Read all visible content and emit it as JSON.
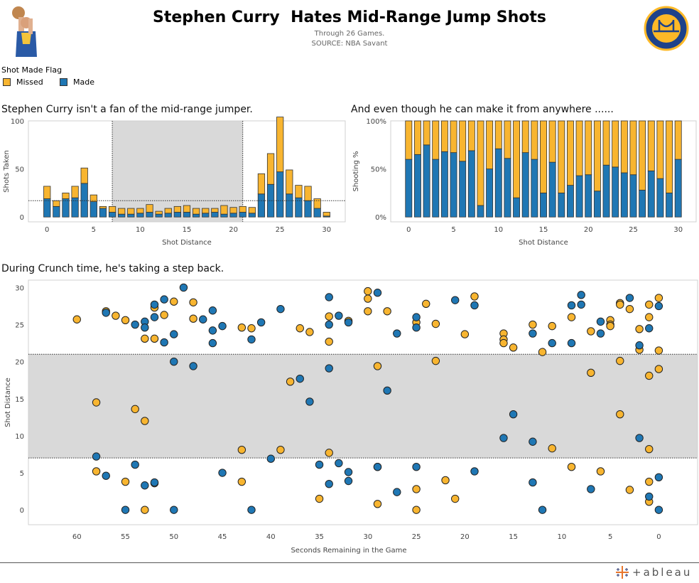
{
  "header": {
    "title": "Stephen Curry  Hates Mid-Range Jump Shots",
    "subtitle_line1": "Through 26 Games.",
    "subtitle_line2": "SOURCE: NBA Savant",
    "logo_text_top": "GOLDEN STATE",
    "logo_text_bottom": "WARRIORS"
  },
  "legend": {
    "title": "Shot Made Flag",
    "items": [
      {
        "label": "Missed",
        "color": "#f8b530"
      },
      {
        "label": "Made",
        "color": "#1f77b4"
      }
    ]
  },
  "colors": {
    "missed": "#f8b530",
    "made": "#1f77b4",
    "midrange_band": "#d9d9d9"
  },
  "footer": {
    "brand": "+ableau"
  },
  "chart_data": [
    {
      "type": "bar",
      "stacked": true,
      "title": "Stephen Curry isn't a fan of the mid-range jumper.",
      "xlabel": "Shot Distance",
      "ylabel": "Shots Taken",
      "xlim": [
        -2,
        32
      ],
      "ylim": [
        -5,
        100
      ],
      "x_ticks": [
        0,
        5,
        10,
        15,
        20,
        25,
        30
      ],
      "y_ticks": [
        0,
        50,
        100
      ],
      "highlight_band_x": [
        7,
        21
      ],
      "reference_line_y": 17,
      "categories": [
        0,
        1,
        2,
        3,
        4,
        5,
        6,
        7,
        8,
        9,
        10,
        11,
        12,
        13,
        14,
        15,
        16,
        17,
        18,
        19,
        20,
        21,
        22,
        23,
        24,
        25,
        26,
        27,
        28,
        29,
        30
      ],
      "series": [
        {
          "name": "Made",
          "values": [
            19,
            11,
            19,
            20,
            35,
            16,
            9,
            5,
            3,
            3,
            4,
            5,
            3,
            4,
            5,
            5,
            3,
            4,
            5,
            3,
            4,
            5,
            4,
            24,
            34,
            47,
            24,
            20,
            17,
            9,
            1
          ]
        },
        {
          "name": "Missed",
          "values": [
            13,
            6,
            6,
            12,
            16,
            7,
            2,
            6,
            6,
            6,
            5,
            8,
            3,
            5,
            6,
            7,
            6,
            5,
            4,
            9,
            6,
            6,
            6,
            21,
            32,
            57,
            25,
            13,
            15,
            10,
            4
          ]
        }
      ]
    },
    {
      "type": "bar",
      "stacked": true,
      "title": "And even though he can make it from anywhere ......",
      "xlabel": "Shot Distance",
      "ylabel": "Shooting %",
      "xlim": [
        -2,
        32
      ],
      "ylim": [
        -5,
        100
      ],
      "x_ticks": [
        0,
        5,
        10,
        15,
        20,
        25,
        30
      ],
      "y_ticks": [
        "0%",
        "50%",
        "100%"
      ],
      "categories": [
        0,
        1,
        2,
        3,
        4,
        5,
        6,
        7,
        8,
        9,
        10,
        11,
        12,
        13,
        14,
        15,
        16,
        17,
        18,
        19,
        20,
        21,
        22,
        23,
        24,
        25,
        26,
        27,
        28,
        29,
        30
      ],
      "series": [
        {
          "name": "Made",
          "values": [
            60,
            65,
            75,
            60,
            68,
            67,
            58,
            69,
            12,
            50,
            71,
            61,
            20,
            67,
            60,
            25,
            57,
            25,
            33,
            43,
            44,
            27,
            54,
            52,
            46,
            44,
            28,
            48,
            40,
            25,
            60
          ]
        },
        {
          "name": "Missed",
          "values": [
            40,
            35,
            25,
            40,
            32,
            33,
            42,
            31,
            88,
            50,
            29,
            39,
            80,
            33,
            40,
            75,
            43,
            75,
            67,
            57,
            56,
            73,
            46,
            48,
            54,
            56,
            72,
            52,
            60,
            75,
            40
          ]
        }
      ]
    },
    {
      "type": "scatter",
      "title": "During Crunch time, he's taking a step back.",
      "xlabel": "Seconds Remaining in the Game",
      "ylabel": "Shot Distance",
      "x_reversed": true,
      "xlim": [
        65,
        -4
      ],
      "ylim": [
        -2,
        31
      ],
      "x_ticks": [
        60,
        55,
        50,
        45,
        40,
        35,
        30,
        25,
        20,
        15,
        10,
        5,
        0
      ],
      "y_ticks": [
        0,
        5,
        10,
        15,
        20,
        25,
        30
      ],
      "highlight_band_y": [
        7,
        21
      ],
      "made": [
        [
          57,
          26.6
        ],
        [
          54,
          25
        ],
        [
          53,
          25.4
        ],
        [
          53,
          24.6
        ],
        [
          52,
          27.7
        ],
        [
          52,
          26
        ],
        [
          51,
          28.4
        ],
        [
          51,
          22.6
        ],
        [
          50,
          23.7
        ],
        [
          49,
          30
        ],
        [
          47,
          25.7
        ],
        [
          46,
          26.9
        ],
        [
          46,
          24.2
        ],
        [
          46,
          22.5
        ],
        [
          45,
          24.8
        ],
        [
          42,
          23
        ],
        [
          41,
          25.3
        ],
        [
          39,
          27.1
        ],
        [
          34,
          28.7
        ],
        [
          34,
          25
        ],
        [
          33,
          26.2
        ],
        [
          32,
          25.3
        ],
        [
          29,
          29.3
        ],
        [
          27,
          23.8
        ],
        [
          25,
          26
        ],
        [
          25,
          24.6
        ],
        [
          21,
          28.3
        ],
        [
          19,
          27.6
        ],
        [
          13,
          23.8
        ],
        [
          11,
          22.5
        ],
        [
          9,
          22.5
        ],
        [
          9,
          27.6
        ],
        [
          8,
          29
        ],
        [
          8,
          27.7
        ],
        [
          6,
          25.4
        ],
        [
          6,
          23.8
        ],
        [
          3,
          28.6
        ],
        [
          2,
          22.2
        ],
        [
          1,
          24.5
        ],
        [
          0,
          27.5
        ],
        [
          50,
          20
        ],
        [
          48,
          19.4
        ],
        [
          37,
          17.7
        ],
        [
          36,
          14.6
        ],
        [
          34,
          19.1
        ],
        [
          28,
          16.1
        ],
        [
          16,
          9.7
        ],
        [
          15,
          12.9
        ],
        [
          13,
          9.2
        ],
        [
          2,
          9.7
        ],
        [
          58,
          7.2
        ],
        [
          57,
          4.6
        ],
        [
          55,
          0
        ],
        [
          54,
          6.1
        ],
        [
          53,
          3.3
        ],
        [
          52,
          3.7
        ],
        [
          50,
          0
        ],
        [
          45,
          5
        ],
        [
          42,
          0
        ],
        [
          40,
          6.9
        ],
        [
          35,
          6.1
        ],
        [
          34,
          3.5
        ],
        [
          33,
          6.3
        ],
        [
          32,
          5.1
        ],
        [
          32,
          3.9
        ],
        [
          29,
          5.8
        ],
        [
          27,
          2.4
        ],
        [
          25,
          5.8
        ],
        [
          19,
          5.2
        ],
        [
          13,
          3.7
        ],
        [
          12,
          0
        ],
        [
          7,
          2.8
        ],
        [
          1,
          1.8
        ],
        [
          0,
          0
        ],
        [
          0,
          4.4
        ]
      ],
      "missed": [
        [
          60,
          25.7
        ],
        [
          57,
          26.8
        ],
        [
          56,
          26.2
        ],
        [
          55,
          25.6
        ],
        [
          53,
          23.1
        ],
        [
          52,
          27.3
        ],
        [
          52,
          23.1
        ],
        [
          51,
          26.3
        ],
        [
          50,
          28.1
        ],
        [
          48,
          28
        ],
        [
          48,
          25.8
        ],
        [
          43,
          24.6
        ],
        [
          42,
          24.5
        ],
        [
          37,
          24.5
        ],
        [
          36,
          24
        ],
        [
          34,
          26.1
        ],
        [
          34,
          22.7
        ],
        [
          32,
          25.5
        ],
        [
          30,
          29.5
        ],
        [
          30,
          28.5
        ],
        [
          30,
          26.8
        ],
        [
          28,
          26.8
        ],
        [
          25,
          25.3
        ],
        [
          24,
          27.8
        ],
        [
          23,
          25.1
        ],
        [
          20,
          23.7
        ],
        [
          19,
          28.8
        ],
        [
          16,
          23.8
        ],
        [
          16,
          23
        ],
        [
          16,
          22.5
        ],
        [
          15,
          21.9
        ],
        [
          13,
          25
        ],
        [
          12,
          21.3
        ],
        [
          11,
          24.8
        ],
        [
          9,
          26
        ],
        [
          7,
          24.1
        ],
        [
          5,
          25.6
        ],
        [
          5,
          25
        ],
        [
          5,
          24.8
        ],
        [
          4,
          27.9
        ],
        [
          4,
          27.7
        ],
        [
          3,
          27.1
        ],
        [
          2,
          24.4
        ],
        [
          2,
          21.6
        ],
        [
          1,
          27.7
        ],
        [
          1,
          26
        ],
        [
          0,
          28.6
        ],
        [
          0,
          21.5
        ],
        [
          58,
          14.5
        ],
        [
          54,
          13.6
        ],
        [
          53,
          12
        ],
        [
          38,
          17.3
        ],
        [
          29,
          19.4
        ],
        [
          23,
          20.1
        ],
        [
          7,
          18.5
        ],
        [
          4,
          20.1
        ],
        [
          4,
          12.9
        ],
        [
          1,
          18.1
        ],
        [
          0,
          19
        ],
        [
          58,
          5.2
        ],
        [
          55,
          3.8
        ],
        [
          53,
          0
        ],
        [
          52,
          3.6
        ],
        [
          43,
          8.1
        ],
        [
          43,
          3.8
        ],
        [
          39,
          8.1
        ],
        [
          35,
          1.5
        ],
        [
          34,
          7.7
        ],
        [
          29,
          5.8
        ],
        [
          29,
          0.8
        ],
        [
          25,
          2.8
        ],
        [
          25,
          0
        ],
        [
          22,
          4
        ],
        [
          21,
          1.5
        ],
        [
          11,
          8.3
        ],
        [
          9,
          5.8
        ],
        [
          6,
          5.2
        ],
        [
          3,
          2.7
        ],
        [
          1,
          8.2
        ],
        [
          1,
          3.8
        ],
        [
          1,
          1.1
        ]
      ]
    }
  ]
}
